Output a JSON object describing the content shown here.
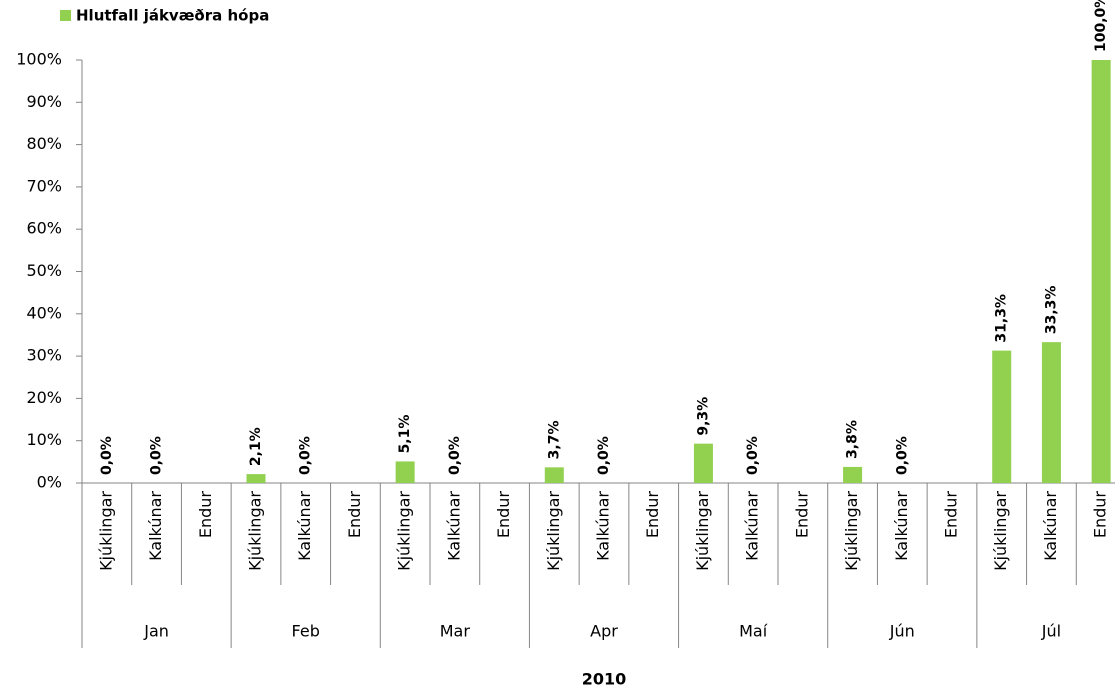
{
  "chart_data": {
    "type": "bar",
    "legend": "Hlutfall jákvæðra hópa",
    "legend_position": "top-left",
    "color": "#92d050",
    "x_label": "2010",
    "groups": [
      "Jan",
      "Feb",
      "Mar",
      "Apr",
      "Maí",
      "Jún",
      "Júl"
    ],
    "categories": [
      "Kjúklingar",
      "Kalkúnar",
      "Endur",
      "Kjúklingar",
      "Kalkúnar",
      "Endur",
      "Kjúklingar",
      "Kalkúnar",
      "Endur",
      "Kjúklingar",
      "Kalkúnar",
      "Endur",
      "Kjúklingar",
      "Kalkúnar",
      "Endur",
      "Kjúklingar",
      "Kalkúnar",
      "Endur",
      "Kjúklingar",
      "Kalkúnar",
      "Endur"
    ],
    "values": [
      0,
      0,
      null,
      2.1,
      0,
      null,
      5.1,
      0,
      null,
      3.7,
      0,
      null,
      9.3,
      0,
      null,
      3.8,
      0,
      null,
      31.3,
      33.3,
      100
    ],
    "value_labels": [
      "0,0%",
      "0,0%",
      null,
      "2,1%",
      "0,0%",
      null,
      "5,1%",
      "0,0%",
      null,
      "3,7%",
      "0,0%",
      null,
      "9,3%",
      "0,0%",
      null,
      "3,8%",
      "0,0%",
      null,
      "31,3%",
      "33,3%",
      "100,0%"
    ],
    "ylim": [
      0,
      100
    ],
    "yticks": [
      {
        "value": 0,
        "label": "0%"
      },
      {
        "value": 10,
        "label": "10%"
      },
      {
        "value": 20,
        "label": "20%"
      },
      {
        "value": 30,
        "label": "30%"
      },
      {
        "value": 40,
        "label": "40%"
      },
      {
        "value": 50,
        "label": "50%"
      },
      {
        "value": 60,
        "label": "60%"
      },
      {
        "value": 70,
        "label": "70%"
      },
      {
        "value": 80,
        "label": "80%"
      },
      {
        "value": 90,
        "label": "90%"
      },
      {
        "value": 100,
        "label": "100%"
      }
    ],
    "grid": false
  }
}
